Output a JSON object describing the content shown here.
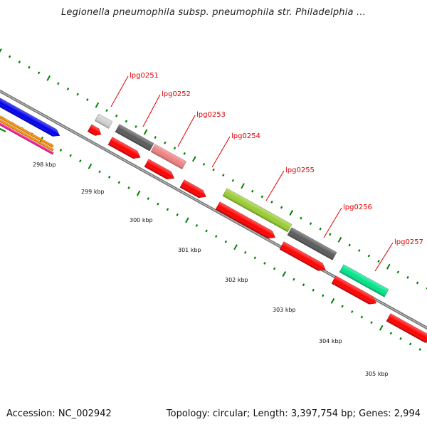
{
  "title": "Legionella pneumophila subsp. pneumophila str. Philadelphia ...",
  "accession": "Accession: NC_002942",
  "summary": "Topology: circular; Length: 3,397,754 bp; Genes: 2,994",
  "ticks": [
    "298 kbp",
    "299 kbp",
    "300 kbp",
    "301 kbp",
    "302 kbp",
    "303 kbp",
    "304 kbp",
    "305 kbp"
  ],
  "genes": [
    {
      "id": "lpg0251",
      "label": "lpg0251",
      "color": "#d0d0d0"
    },
    {
      "id": "lpg0252",
      "label": "lpg0252",
      "color": "#5a5a5a"
    },
    {
      "id": "lpg0253",
      "label": "lpg0253",
      "color": "#f08080"
    },
    {
      "id": "lpg0254",
      "label": "lpg0254",
      "color": "#ff0000"
    },
    {
      "id": "lpg0255",
      "label": "lpg0255",
      "color": "#9acd32"
    },
    {
      "id": "lpg0256",
      "label": "lpg0256",
      "color": "#5a5a5a"
    },
    {
      "id": "lpg0257",
      "label": "lpg0257",
      "color": "#00e38a"
    }
  ],
  "colors": {
    "backbone": "#808080",
    "cds": "#ff0000",
    "tick": "#008000",
    "label": "#e00000",
    "left_blue": "#0000ee",
    "left_magenta": "#ff1493",
    "left_orange": "#ff8c00"
  }
}
